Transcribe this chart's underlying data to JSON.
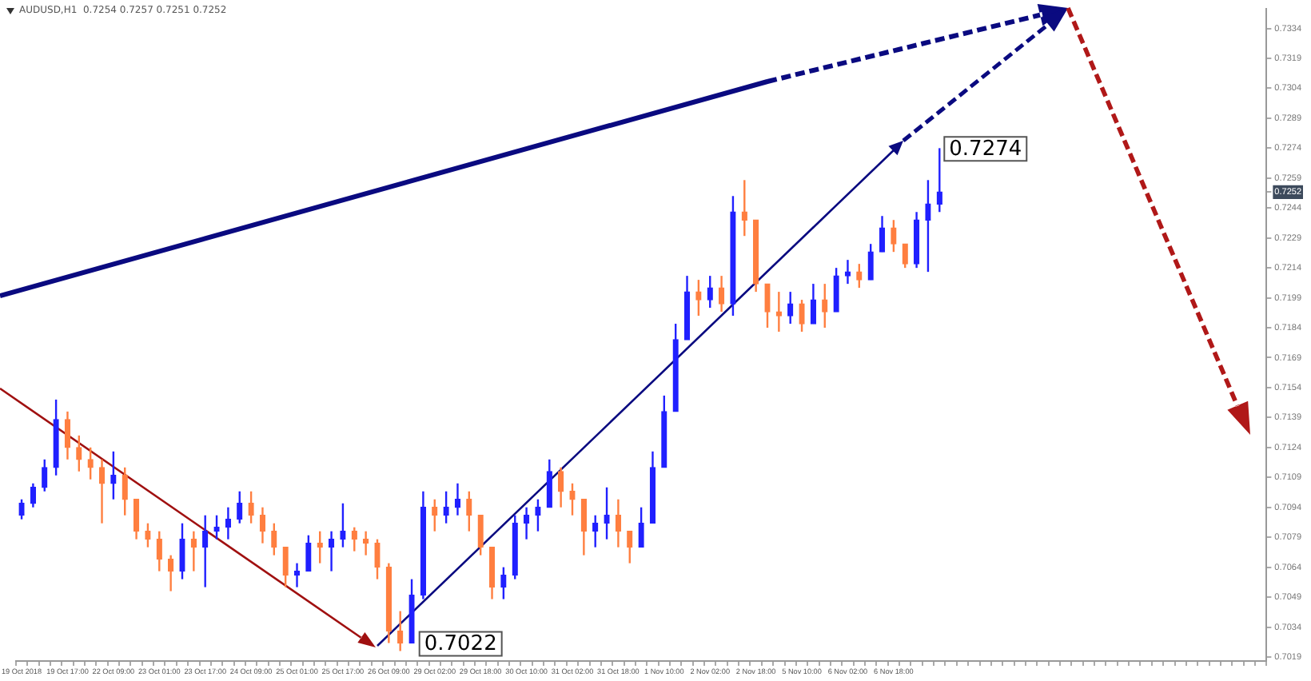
{
  "chart_data": {
    "type": "candlestick",
    "title": "AUDUSD,H1  0.7254 0.7257 0.7251 0.7252",
    "categories": [
      "19 Oct 2018",
      null,
      null,
      null,
      "19 Oct 17:00",
      null,
      null,
      null,
      "22 Oct 09:00",
      null,
      null,
      null,
      "23 Oct 01:00",
      null,
      null,
      null,
      "23 Oct 17:00",
      null,
      null,
      null,
      "24 Oct 09:00",
      null,
      null,
      null,
      "25 Oct 01:00",
      null,
      null,
      null,
      "25 Oct 17:00",
      null,
      null,
      null,
      "26 Oct 09:00",
      null,
      null,
      null,
      "29 Oct 02:00",
      null,
      null,
      null,
      "29 Oct 18:00",
      null,
      null,
      null,
      "30 Oct 10:00",
      null,
      null,
      null,
      "31 Oct 02:00",
      null,
      null,
      null,
      "31 Oct 18:00",
      null,
      null,
      null,
      "1 Nov 10:00",
      null,
      null,
      null,
      "2 Nov 02:00",
      null,
      null,
      null,
      "2 Nov 18:00",
      null,
      null,
      null,
      "5 Nov 10:00",
      null,
      null,
      null,
      "6 Nov 02:00",
      null,
      null,
      null,
      "6 Nov 18:00",
      null,
      null,
      null,
      null,
      null,
      null,
      null,
      null,
      null,
      null,
      null,
      null,
      null,
      null,
      null,
      null,
      null,
      null,
      null,
      null,
      null,
      null,
      null,
      null,
      null,
      null,
      null,
      null,
      null,
      null,
      null,
      null
    ],
    "ohlc": [
      [
        0.709,
        0.7098,
        0.7088,
        0.7096
      ],
      [
        0.7096,
        0.7106,
        0.7094,
        0.7104
      ],
      [
        0.7104,
        0.7118,
        0.7102,
        0.7114
      ],
      [
        0.7114,
        0.7148,
        0.711,
        0.7138
      ],
      [
        0.7138,
        0.7142,
        0.7118,
        0.7124
      ],
      [
        0.7124,
        0.713,
        0.7112,
        0.7118
      ],
      [
        0.7118,
        0.7124,
        0.7108,
        0.7114
      ],
      [
        0.7114,
        0.7118,
        0.7086,
        0.7106
      ],
      [
        0.7106,
        0.7122,
        0.7098,
        0.711
      ],
      [
        0.711,
        0.7114,
        0.709,
        0.7098
      ],
      [
        0.7098,
        0.7098,
        0.7078,
        0.7082
      ],
      [
        0.7082,
        0.7086,
        0.7074,
        0.7078
      ],
      [
        0.7078,
        0.7082,
        0.7062,
        0.7068
      ],
      [
        0.7068,
        0.707,
        0.7052,
        0.7062
      ],
      [
        0.7062,
        0.7086,
        0.7058,
        0.7078
      ],
      [
        0.7078,
        0.7082,
        0.7062,
        0.7074
      ],
      [
        0.7074,
        0.709,
        0.7054,
        0.7082
      ],
      [
        0.7082,
        0.709,
        0.7078,
        0.7084
      ],
      [
        0.7084,
        0.7094,
        0.7078,
        0.7088
      ],
      [
        0.7088,
        0.7102,
        0.7086,
        0.7096
      ],
      [
        0.7096,
        0.7102,
        0.7086,
        0.709
      ],
      [
        0.709,
        0.7094,
        0.7076,
        0.7082
      ],
      [
        0.7082,
        0.7086,
        0.707,
        0.7074
      ],
      [
        0.7074,
        0.7074,
        0.7054,
        0.706
      ],
      [
        0.706,
        0.7066,
        0.7054,
        0.7062
      ],
      [
        0.7062,
        0.708,
        0.7062,
        0.7076
      ],
      [
        0.7076,
        0.7082,
        0.7066,
        0.7074
      ],
      [
        0.7074,
        0.7082,
        0.7062,
        0.7078
      ],
      [
        0.7078,
        0.7096,
        0.7074,
        0.7082
      ],
      [
        0.7082,
        0.7084,
        0.7072,
        0.7078
      ],
      [
        0.7078,
        0.7082,
        0.707,
        0.7076
      ],
      [
        0.7076,
        0.7078,
        0.7058,
        0.7064
      ],
      [
        0.7064,
        0.7066,
        0.7026,
        0.7032
      ],
      [
        0.7032,
        0.7042,
        0.7022,
        0.7026
      ],
      [
        0.7026,
        0.7058,
        0.7026,
        0.705
      ],
      [
        0.705,
        0.7102,
        0.7048,
        0.7094
      ],
      [
        0.7094,
        0.7098,
        0.7082,
        0.709
      ],
      [
        0.709,
        0.7102,
        0.7086,
        0.7094
      ],
      [
        0.7094,
        0.7106,
        0.709,
        0.7098
      ],
      [
        0.7098,
        0.7102,
        0.7082,
        0.709
      ],
      [
        0.709,
        0.709,
        0.707,
        0.7074
      ],
      [
        0.7074,
        0.7074,
        0.7048,
        0.7054
      ],
      [
        0.7054,
        0.7064,
        0.7048,
        0.706
      ],
      [
        0.706,
        0.709,
        0.7058,
        0.7086
      ],
      [
        0.7086,
        0.7094,
        0.7078,
        0.709
      ],
      [
        0.709,
        0.7098,
        0.7082,
        0.7094
      ],
      [
        0.7094,
        0.7118,
        0.7094,
        0.7112
      ],
      [
        0.7112,
        0.7114,
        0.7094,
        0.7102
      ],
      [
        0.7102,
        0.7106,
        0.709,
        0.7098
      ],
      [
        0.7098,
        0.7098,
        0.707,
        0.7082
      ],
      [
        0.7082,
        0.709,
        0.7074,
        0.7086
      ],
      [
        0.7086,
        0.7104,
        0.7078,
        0.709
      ],
      [
        0.709,
        0.7098,
        0.7074,
        0.7082
      ],
      [
        0.7082,
        0.7082,
        0.7066,
        0.7074
      ],
      [
        0.7074,
        0.7094,
        0.7074,
        0.7086
      ],
      [
        0.7086,
        0.7122,
        0.7086,
        0.7114
      ],
      [
        0.7114,
        0.715,
        0.7114,
        0.7142
      ],
      [
        0.7142,
        0.7186,
        0.7142,
        0.7178
      ],
      [
        0.7178,
        0.721,
        0.7178,
        0.7202
      ],
      [
        0.7202,
        0.7208,
        0.719,
        0.7198
      ],
      [
        0.7198,
        0.721,
        0.7194,
        0.7204
      ],
      [
        0.7204,
        0.721,
        0.7192,
        0.7196
      ],
      [
        0.7196,
        0.725,
        0.719,
        0.7242
      ],
      [
        0.7242,
        0.7258,
        0.723,
        0.7238
      ],
      [
        0.7238,
        0.7238,
        0.7202,
        0.7206
      ],
      [
        0.7206,
        0.7206,
        0.7184,
        0.7192
      ],
      [
        0.7192,
        0.7202,
        0.7182,
        0.719
      ],
      [
        0.719,
        0.7202,
        0.7186,
        0.7196
      ],
      [
        0.7196,
        0.7198,
        0.7182,
        0.7186
      ],
      [
        0.7186,
        0.7206,
        0.7186,
        0.7198
      ],
      [
        0.7198,
        0.7206,
        0.7184,
        0.7192
      ],
      [
        0.7192,
        0.7214,
        0.7192,
        0.721
      ],
      [
        0.721,
        0.7218,
        0.7206,
        0.7212
      ],
      [
        0.7212,
        0.7216,
        0.7204,
        0.7208
      ],
      [
        0.7208,
        0.7226,
        0.7208,
        0.7222
      ],
      [
        0.7222,
        0.724,
        0.7222,
        0.7234
      ],
      [
        0.7234,
        0.7238,
        0.7222,
        0.7226
      ],
      [
        0.7226,
        0.7226,
        0.7214,
        0.7216
      ],
      [
        0.7216,
        0.7242,
        0.7214,
        0.7238
      ],
      [
        0.7238,
        0.7258,
        0.7212,
        0.7246
      ],
      [
        0.7246,
        0.7274,
        0.7242,
        0.7252
      ],
      null,
      null,
      null,
      null,
      null,
      null,
      null,
      null,
      null,
      null,
      null,
      null,
      null,
      null,
      null,
      null,
      null,
      null,
      null,
      null,
      null,
      null,
      null,
      null,
      null,
      null,
      null,
      null
    ],
    "colors": [
      "#2020ff",
      "#2020ff",
      "#2020ff",
      "#2020ff",
      "#ff7f40",
      "#ff7f40",
      "#ff7f40",
      "#ff7f40",
      "#2020ff",
      "#ff7f40",
      "#ff7f40",
      "#ff7f40",
      "#ff7f40",
      "#ff7f40",
      "#2020ff",
      "#ff7f40",
      "#2020ff",
      "#2020ff",
      "#2020ff",
      "#2020ff",
      "#ff7f40",
      "#ff7f40",
      "#ff7f40",
      "#ff7f40",
      "#2020ff",
      "#2020ff",
      "#ff7f40",
      "#2020ff",
      "#2020ff",
      "#ff7f40",
      "#ff7f40",
      "#ff7f40",
      "#ff7f40",
      "#ff7f40",
      "#2020ff",
      "#2020ff",
      "#ff7f40",
      "#2020ff",
      "#2020ff",
      "#ff7f40",
      "#ff7f40",
      "#ff7f40",
      "#2020ff",
      "#2020ff",
      "#2020ff",
      "#2020ff",
      "#2020ff",
      "#ff7f40",
      "#ff7f40",
      "#ff7f40",
      "#2020ff",
      "#2020ff",
      "#ff7f40",
      "#ff7f40",
      "#2020ff",
      "#2020ff",
      "#2020ff",
      "#2020ff",
      "#2020ff",
      "#ff7f40",
      "#2020ff",
      "#ff7f40",
      "#2020ff",
      "#ff7f40",
      "#ff7f40",
      "#ff7f40",
      "#ff7f40",
      "#2020ff",
      "#ff7f40",
      "#2020ff",
      "#ff7f40",
      "#2020ff",
      "#2020ff",
      "#ff7f40",
      "#2020ff",
      "#2020ff",
      "#ff7f40",
      "#ff7f40",
      "#2020ff",
      "#2020ff",
      "#2020ff",
      null,
      null,
      null,
      null,
      null,
      null,
      null,
      null,
      null,
      null,
      null,
      null,
      null,
      null,
      null,
      null,
      null,
      null,
      null,
      null,
      null,
      null,
      null,
      null,
      null,
      null,
      null,
      null
    ],
    "ylim": [
      0.7017,
      0.7344
    ],
    "yticks": [
      0.7334,
      0.7319,
      0.7304,
      0.7289,
      0.7274,
      0.7259,
      {
        "value": 0.7252,
        "label": "0.7252"
      },
      0.7244,
      0.7229,
      0.7214,
      0.7199,
      0.7184,
      0.7169,
      0.7154,
      0.7139,
      0.7124,
      0.7109,
      0.7094,
      0.7079,
      0.7064,
      0.7049,
      0.7034,
      0.7019
    ],
    "annotations": [
      "0.7274",
      "0.7022"
    ]
  }
}
